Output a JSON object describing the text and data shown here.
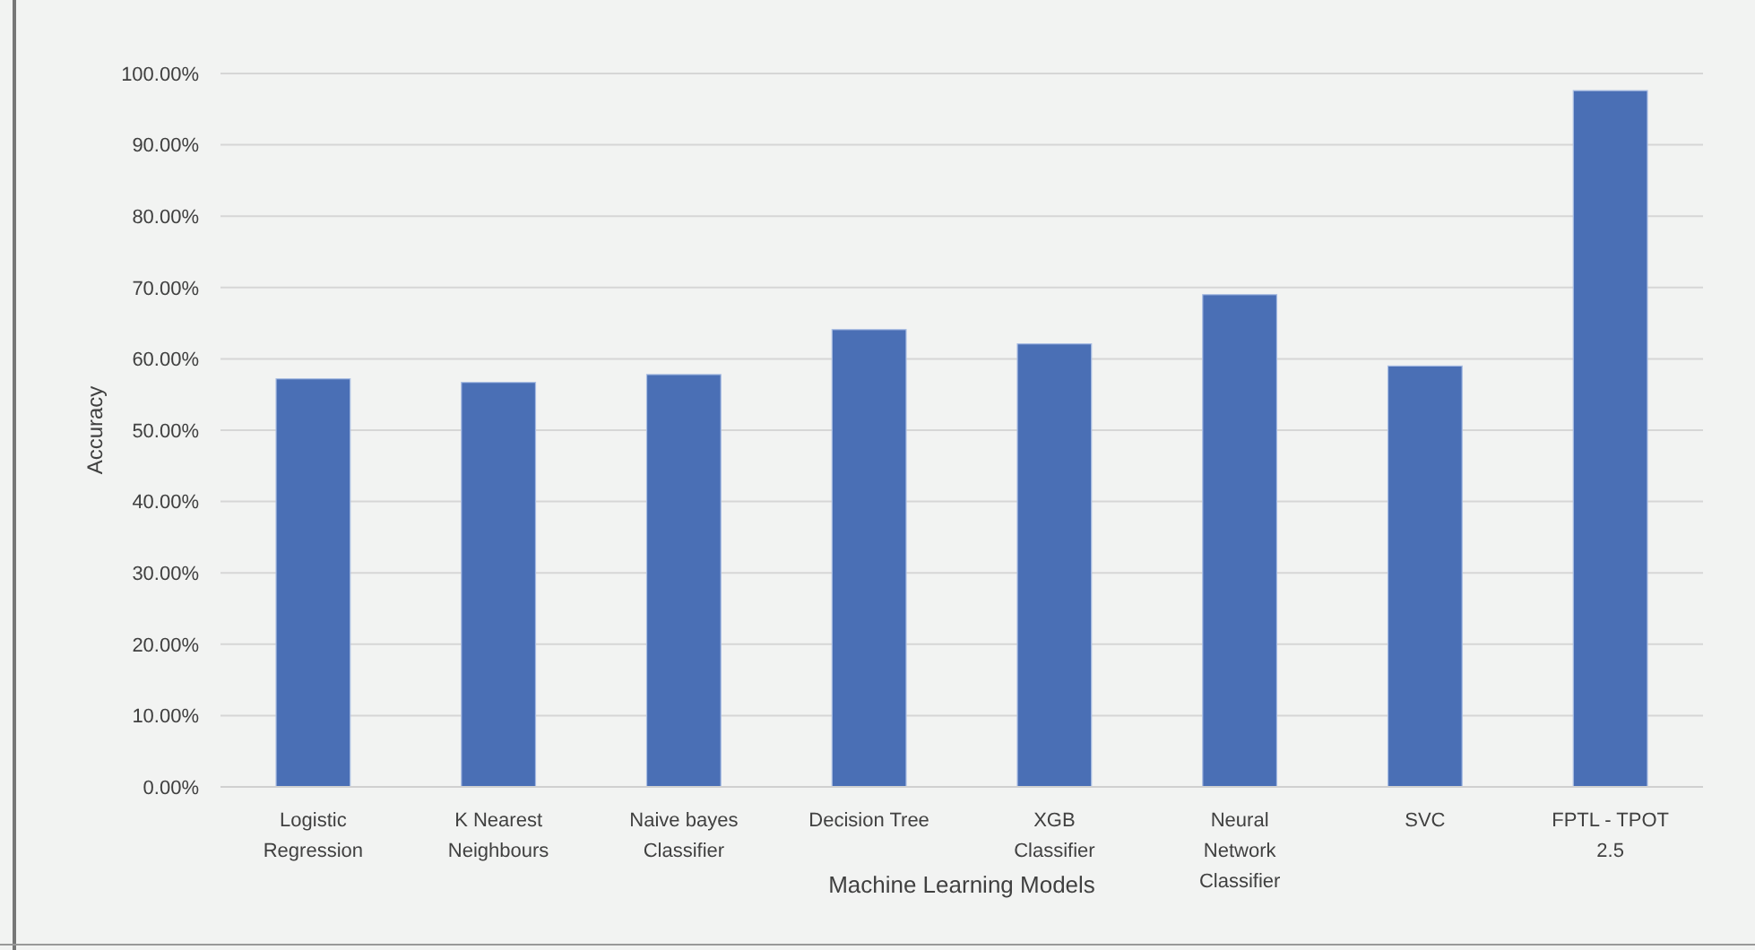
{
  "chart_data": {
    "type": "bar",
    "xlabel": "Machine Learning Models",
    "ylabel": "Accuracy",
    "categories": [
      "Logistic Regression",
      "K Nearest Neighbours",
      "Naive bayes Classifier",
      "Decision Tree",
      "XGB Classifier",
      "Neural Network Classifier",
      "SVC",
      "FPTL - TPOT 2.5"
    ],
    "values": [
      57.2,
      56.7,
      57.8,
      64.1,
      62.1,
      69.0,
      59.0,
      97.6
    ],
    "color": "#4a6fb5",
    "ylim": [
      0,
      100
    ],
    "yticks": [
      {
        "value": 0,
        "label": "0.00%"
      },
      {
        "value": 10,
        "label": "10.00%"
      },
      {
        "value": 20,
        "label": "20.00%"
      },
      {
        "value": 30,
        "label": "30.00%"
      },
      {
        "value": 40,
        "label": "40.00%"
      },
      {
        "value": 50,
        "label": "50.00%"
      },
      {
        "value": 60,
        "label": "60.00%"
      },
      {
        "value": 70,
        "label": "70.00%"
      },
      {
        "value": 80,
        "label": "80.00%"
      },
      {
        "value": 90,
        "label": "90.00%"
      },
      {
        "value": 100,
        "label": "100.00%"
      }
    ],
    "grid": "y"
  }
}
